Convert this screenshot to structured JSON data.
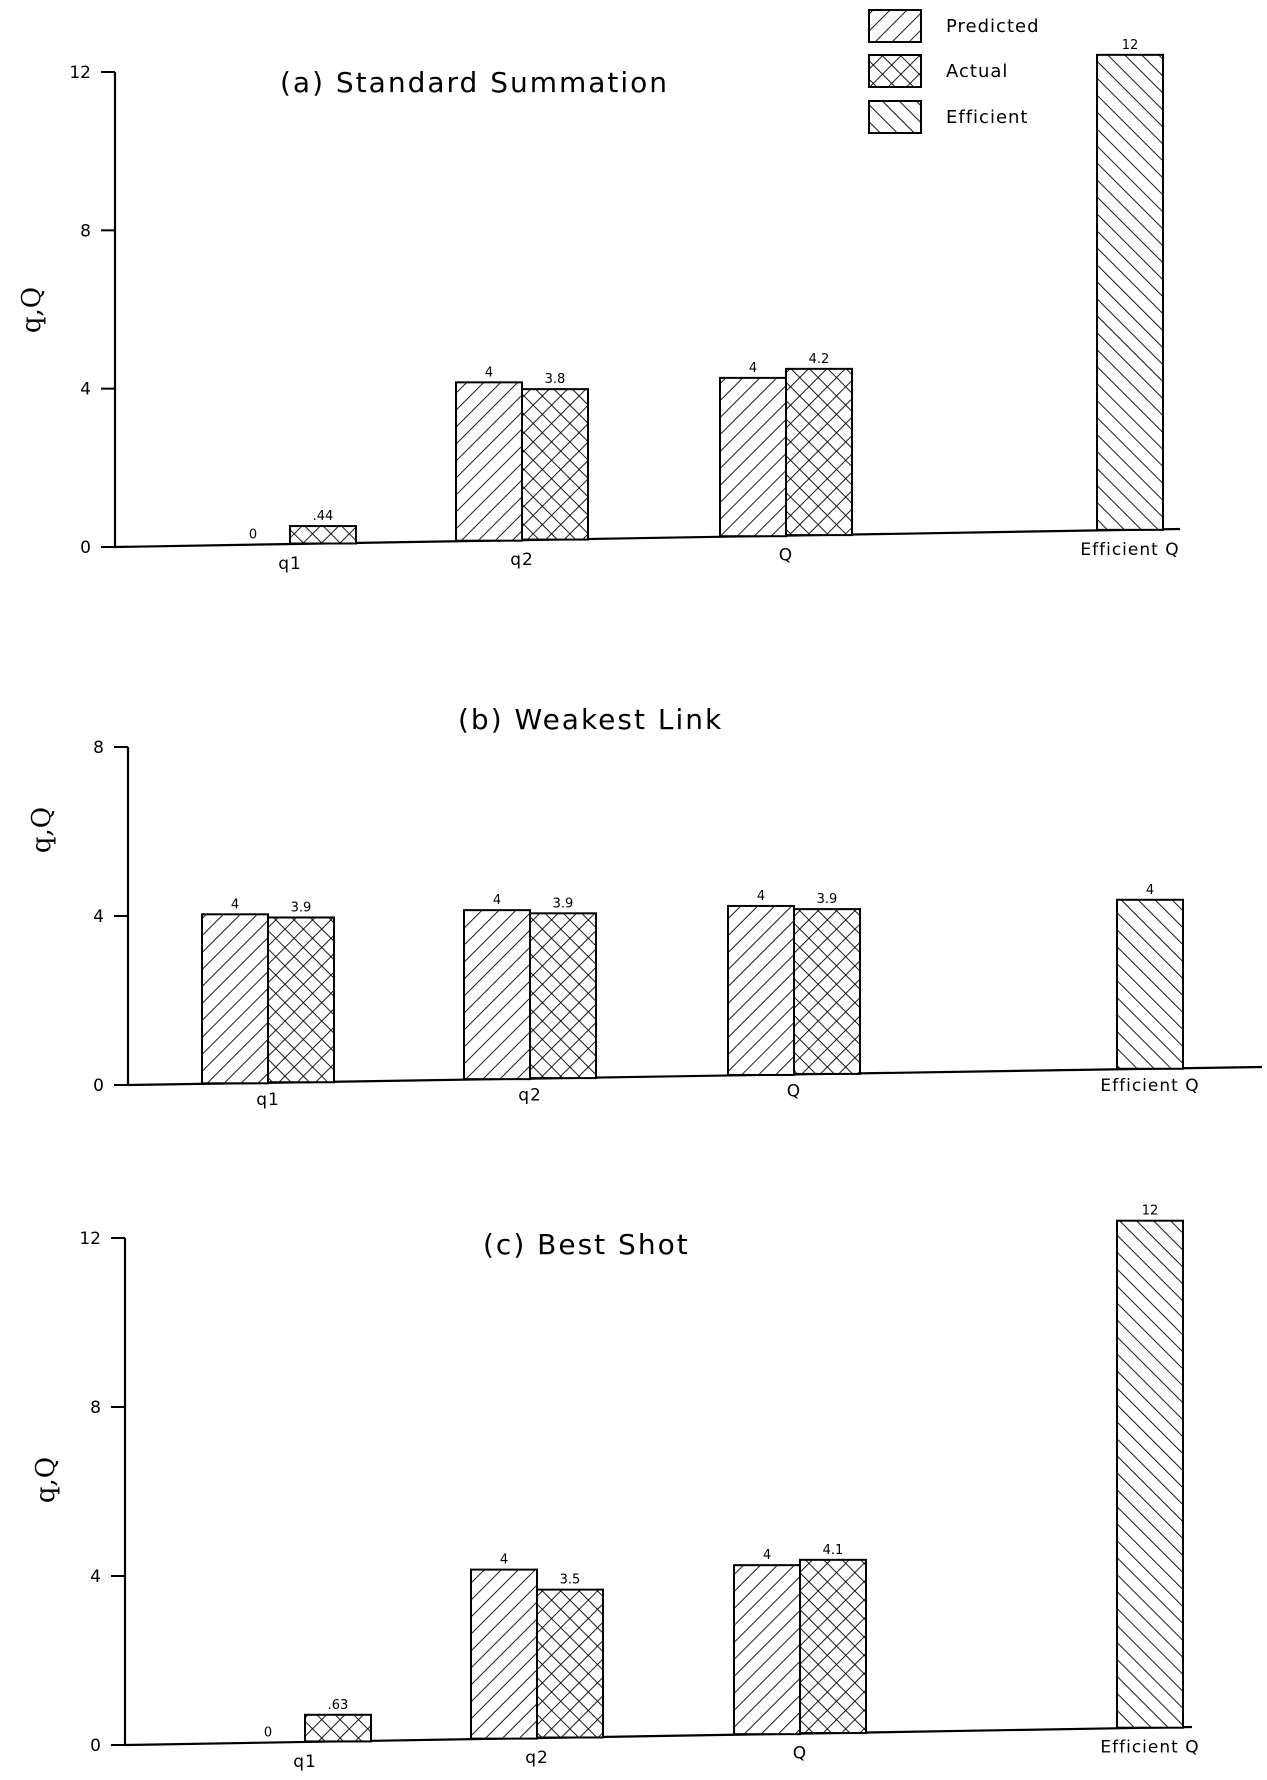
{
  "legend": {
    "items": [
      {
        "label": "Predicted",
        "pattern": "fwd"
      },
      {
        "label": "Actual",
        "pattern": "cross"
      },
      {
        "label": "Efficient",
        "pattern": "back"
      }
    ]
  },
  "chart_data": [
    {
      "type": "bar",
      "title": "(a) Standard Summation",
      "ylabel": "q,Q",
      "ylim": [
        0,
        12
      ],
      "yticks": [
        0,
        4,
        8,
        12
      ],
      "categories": [
        "q1",
        "q2",
        "Q",
        "Efficient Q"
      ],
      "series": [
        {
          "name": "Predicted",
          "values": [
            0,
            4,
            4,
            null
          ],
          "labels": [
            "0",
            "4",
            "4",
            ""
          ]
        },
        {
          "name": "Actual",
          "values": [
            0.44,
            3.8,
            4.2,
            null
          ],
          "labels": [
            ".44",
            "3.8",
            "4.2",
            ""
          ]
        },
        {
          "name": "Efficient",
          "values": [
            null,
            null,
            null,
            12
          ],
          "labels": [
            "",
            "",
            "",
            "12"
          ]
        }
      ]
    },
    {
      "type": "bar",
      "title": "(b) Weakest Link",
      "ylabel": "q,Q",
      "ylim": [
        0,
        8
      ],
      "yticks": [
        0,
        4,
        8
      ],
      "categories": [
        "q1",
        "q2",
        "Q",
        "Efficient Q"
      ],
      "series": [
        {
          "name": "Predicted",
          "values": [
            4,
            4,
            4,
            null
          ],
          "labels": [
            "4",
            "4",
            "4",
            ""
          ]
        },
        {
          "name": "Actual",
          "values": [
            3.9,
            3.9,
            3.9,
            null
          ],
          "labels": [
            "3.9",
            "3.9",
            "3.9",
            ""
          ]
        },
        {
          "name": "Efficient",
          "values": [
            null,
            null,
            null,
            4
          ],
          "labels": [
            "",
            "",
            "",
            "4"
          ]
        }
      ]
    },
    {
      "type": "bar",
      "title": "(c) Best Shot",
      "ylabel": "q,Q",
      "ylim": [
        0,
        12
      ],
      "yticks": [
        0,
        4,
        8,
        12
      ],
      "categories": [
        "q1",
        "q2",
        "Q",
        "Efficient Q"
      ],
      "series": [
        {
          "name": "Predicted",
          "values": [
            0,
            4,
            4,
            null
          ],
          "labels": [
            "0",
            "4",
            "4",
            ""
          ]
        },
        {
          "name": "Actual",
          "values": [
            0.63,
            3.5,
            4.1,
            null
          ],
          "labels": [
            ".63",
            "3.5",
            "4.1",
            ""
          ]
        },
        {
          "name": "Efficient",
          "values": [
            null,
            null,
            null,
            12
          ],
          "labels": [
            "",
            "",
            "",
            "12"
          ]
        }
      ]
    }
  ]
}
